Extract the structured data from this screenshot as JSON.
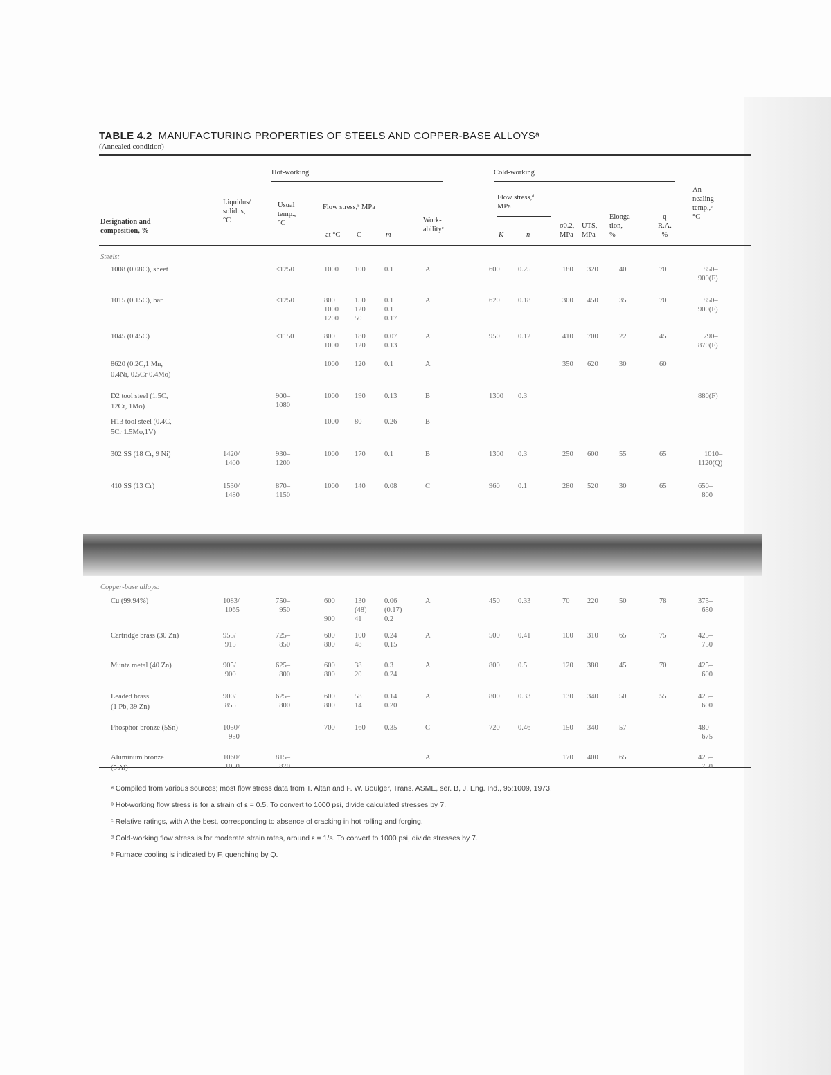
{
  "table": {
    "label": "TABLE 4.2",
    "title": "MANUFACTURING PROPERTIES OF STEELS AND COPPER-BASE ALLOYSᵃ",
    "subtitle": "(Annealed condition)",
    "headers": {
      "designation": "Designation and\ncomposition, %",
      "liquidus": "Liquidus/\nsolidus,\n°C",
      "hot_working": "Hot-working",
      "usual_temp": "Usual\ntemp.,\n°C",
      "hot_flow_stress": "Flow stress,ᵇ MPa",
      "at_c": "at °C",
      "c": "C",
      "m": "m",
      "workability": "Work-\nabilityᶜ",
      "cold_working": "Cold-working",
      "cold_flow_stress": "Flow stress,ᵈ\nMPa",
      "k": "K",
      "n": "n",
      "yield": "σ0.2,\nMPa",
      "uts": "UTS,\nMPa",
      "elongation": "Elonga-\ntion,\n%",
      "ra": "q\nR.A.\n%",
      "annealing": "An-\nnealing\ntemp.,ᵉ\n°C"
    },
    "sections": [
      {
        "label": "Steels:",
        "rows": [
          {
            "name": "1008 (0.08C), sheet",
            "liq": "",
            "usual": "<1250",
            "at": "1000",
            "c": "100",
            "m": "0.1",
            "work": "A",
            "k": "600",
            "n": "0.25",
            "y": "180",
            "uts": "320",
            "el": "40",
            "ra": "70",
            "ann": "850–\n900(F)"
          },
          {
            "name": "1015 (0.15C), bar",
            "liq": "",
            "usual": "<1250",
            "at": "800\n1000\n1200",
            "c": "150\n120\n50",
            "m": "0.1\n0.1\n0.17",
            "work": "A",
            "k": "620",
            "n": "0.18",
            "y": "300",
            "uts": "450",
            "el": "35",
            "ra": "70",
            "ann": "850–\n900(F)"
          },
          {
            "name": "1045 (0.45C)",
            "liq": "",
            "usual": "<1150",
            "at": "800\n1000",
            "c": "180\n120",
            "m": "0.07\n0.13",
            "work": "A",
            "k": "950",
            "n": "0.12",
            "y": "410",
            "uts": "700",
            "el": "22",
            "ra": "45",
            "ann": "790–\n870(F)"
          },
          {
            "name": "8620 (0.2C,1 Mn,\n  0.4Ni, 0.5Cr 0.4Mo)",
            "liq": "",
            "usual": "",
            "at": "1000",
            "c": "120",
            "m": "0.1",
            "work": "A",
            "k": "",
            "n": "",
            "y": "350",
            "uts": "620",
            "el": "30",
            "ra": "60",
            "ann": ""
          },
          {
            "name": "D2 tool steel (1.5C,\n  12Cr, 1Mo)",
            "liq": "",
            "usual": "900–\n1080",
            "at": "1000",
            "c": "190",
            "m": "0.13",
            "work": "B",
            "k": "1300",
            "n": "0.3",
            "y": "",
            "uts": "",
            "el": "",
            "ra": "",
            "ann": "880(F)"
          },
          {
            "name": "H13 tool steel (0.4C,\n  5Cr 1.5Mo,1V)",
            "liq": "",
            "usual": "",
            "at": "1000",
            "c": "80",
            "m": "0.26",
            "work": "B",
            "k": "",
            "n": "",
            "y": "",
            "uts": "",
            "el": "",
            "ra": "",
            "ann": ""
          },
          {
            "name": "302 SS (18 Cr, 9 Ni)",
            "liq": "1420/\n1400",
            "usual": "930–\n1200",
            "at": "1000",
            "c": "170",
            "m": "0.1",
            "work": "B",
            "k": "1300",
            "n": "0.3",
            "y": "250",
            "uts": "600",
            "el": "55",
            "ra": "65",
            "ann": "1010–\n1120(Q)"
          },
          {
            "name": "410 SS (13 Cr)",
            "liq": "1530/\n1480",
            "usual": "870–\n1150",
            "at": "1000",
            "c": "140",
            "m": "0.08",
            "work": "C",
            "k": "960",
            "n": "0.1",
            "y": "280",
            "uts": "520",
            "el": "30",
            "ra": "65",
            "ann": "650–\n800"
          }
        ]
      },
      {
        "label": "Copper-base alloys:",
        "rows": [
          {
            "name": "Cu (99.94%)",
            "liq": "1083/\n1065",
            "usual": "750–\n950",
            "at": "600\n\n900",
            "c": "130\n(48)\n41",
            "m": "0.06\n(0.17)\n0.2",
            "work": "A",
            "k": "450",
            "n": "0.33",
            "y": "70",
            "uts": "220",
            "el": "50",
            "ra": "78",
            "ann": "375–\n650"
          },
          {
            "name": "Cartridge brass (30 Zn)",
            "liq": "955/\n915",
            "usual": "725–\n850",
            "at": "600\n800",
            "c": "100\n48",
            "m": "0.24\n0.15",
            "work": "A",
            "k": "500",
            "n": "0.41",
            "y": "100",
            "uts": "310",
            "el": "65",
            "ra": "75",
            "ann": "425–\n750"
          },
          {
            "name": "Muntz metal (40 Zn)",
            "liq": "905/\n900",
            "usual": "625–\n800",
            "at": "600\n800",
            "c": "38\n20",
            "m": "0.3\n0.24",
            "work": "A",
            "k": "800",
            "n": "0.5",
            "y": "120",
            "uts": "380",
            "el": "45",
            "ra": "70",
            "ann": "425–\n600"
          },
          {
            "name": "Leaded brass\n  (1 Pb, 39 Zn)",
            "liq": "900/\n855",
            "usual": "625–\n800",
            "at": "600\n800",
            "c": "58\n14",
            "m": "0.14\n0.20",
            "work": "A",
            "k": "800",
            "n": "0.33",
            "y": "130",
            "uts": "340",
            "el": "50",
            "ra": "55",
            "ann": "425–\n600"
          },
          {
            "name": "Phosphor bronze (5Sn)",
            "liq": "1050/\n950",
            "usual": "",
            "at": "700",
            "c": "160",
            "m": "0.35",
            "work": "C",
            "k": "720",
            "n": "0.46",
            "y": "150",
            "uts": "340",
            "el": "57",
            "ra": "",
            "ann": "480–\n675"
          },
          {
            "name": "Aluminum bronze\n  (5 Al)",
            "liq": "1060/\n1050",
            "usual": "815–\n870",
            "at": "",
            "c": "",
            "m": "",
            "work": "A",
            "k": "",
            "n": "",
            "y": "170",
            "uts": "400",
            "el": "65",
            "ra": "",
            "ann": "425–\n750"
          }
        ]
      }
    ],
    "footnotes": [
      "ᵃ Compiled from various sources; most flow stress data from T. Altan and F. W. Boulger, Trans. ASME, ser. B, J. Eng. Ind., 95:1009, 1973.",
      "ᵇ Hot-working flow stress is for a strain of ε = 0.5. To convert to 1000 psi, divide calculated stresses by 7.",
      "ᶜ Relative ratings, with A the best, corresponding to absence of cracking in hot rolling and forging.",
      "ᵈ Cold-working flow stress is for moderate strain rates, around ε = 1/s. To convert to 1000 psi, divide stresses by 7.",
      "ᵉ Furnace cooling is indicated by F, quenching by Q."
    ]
  }
}
